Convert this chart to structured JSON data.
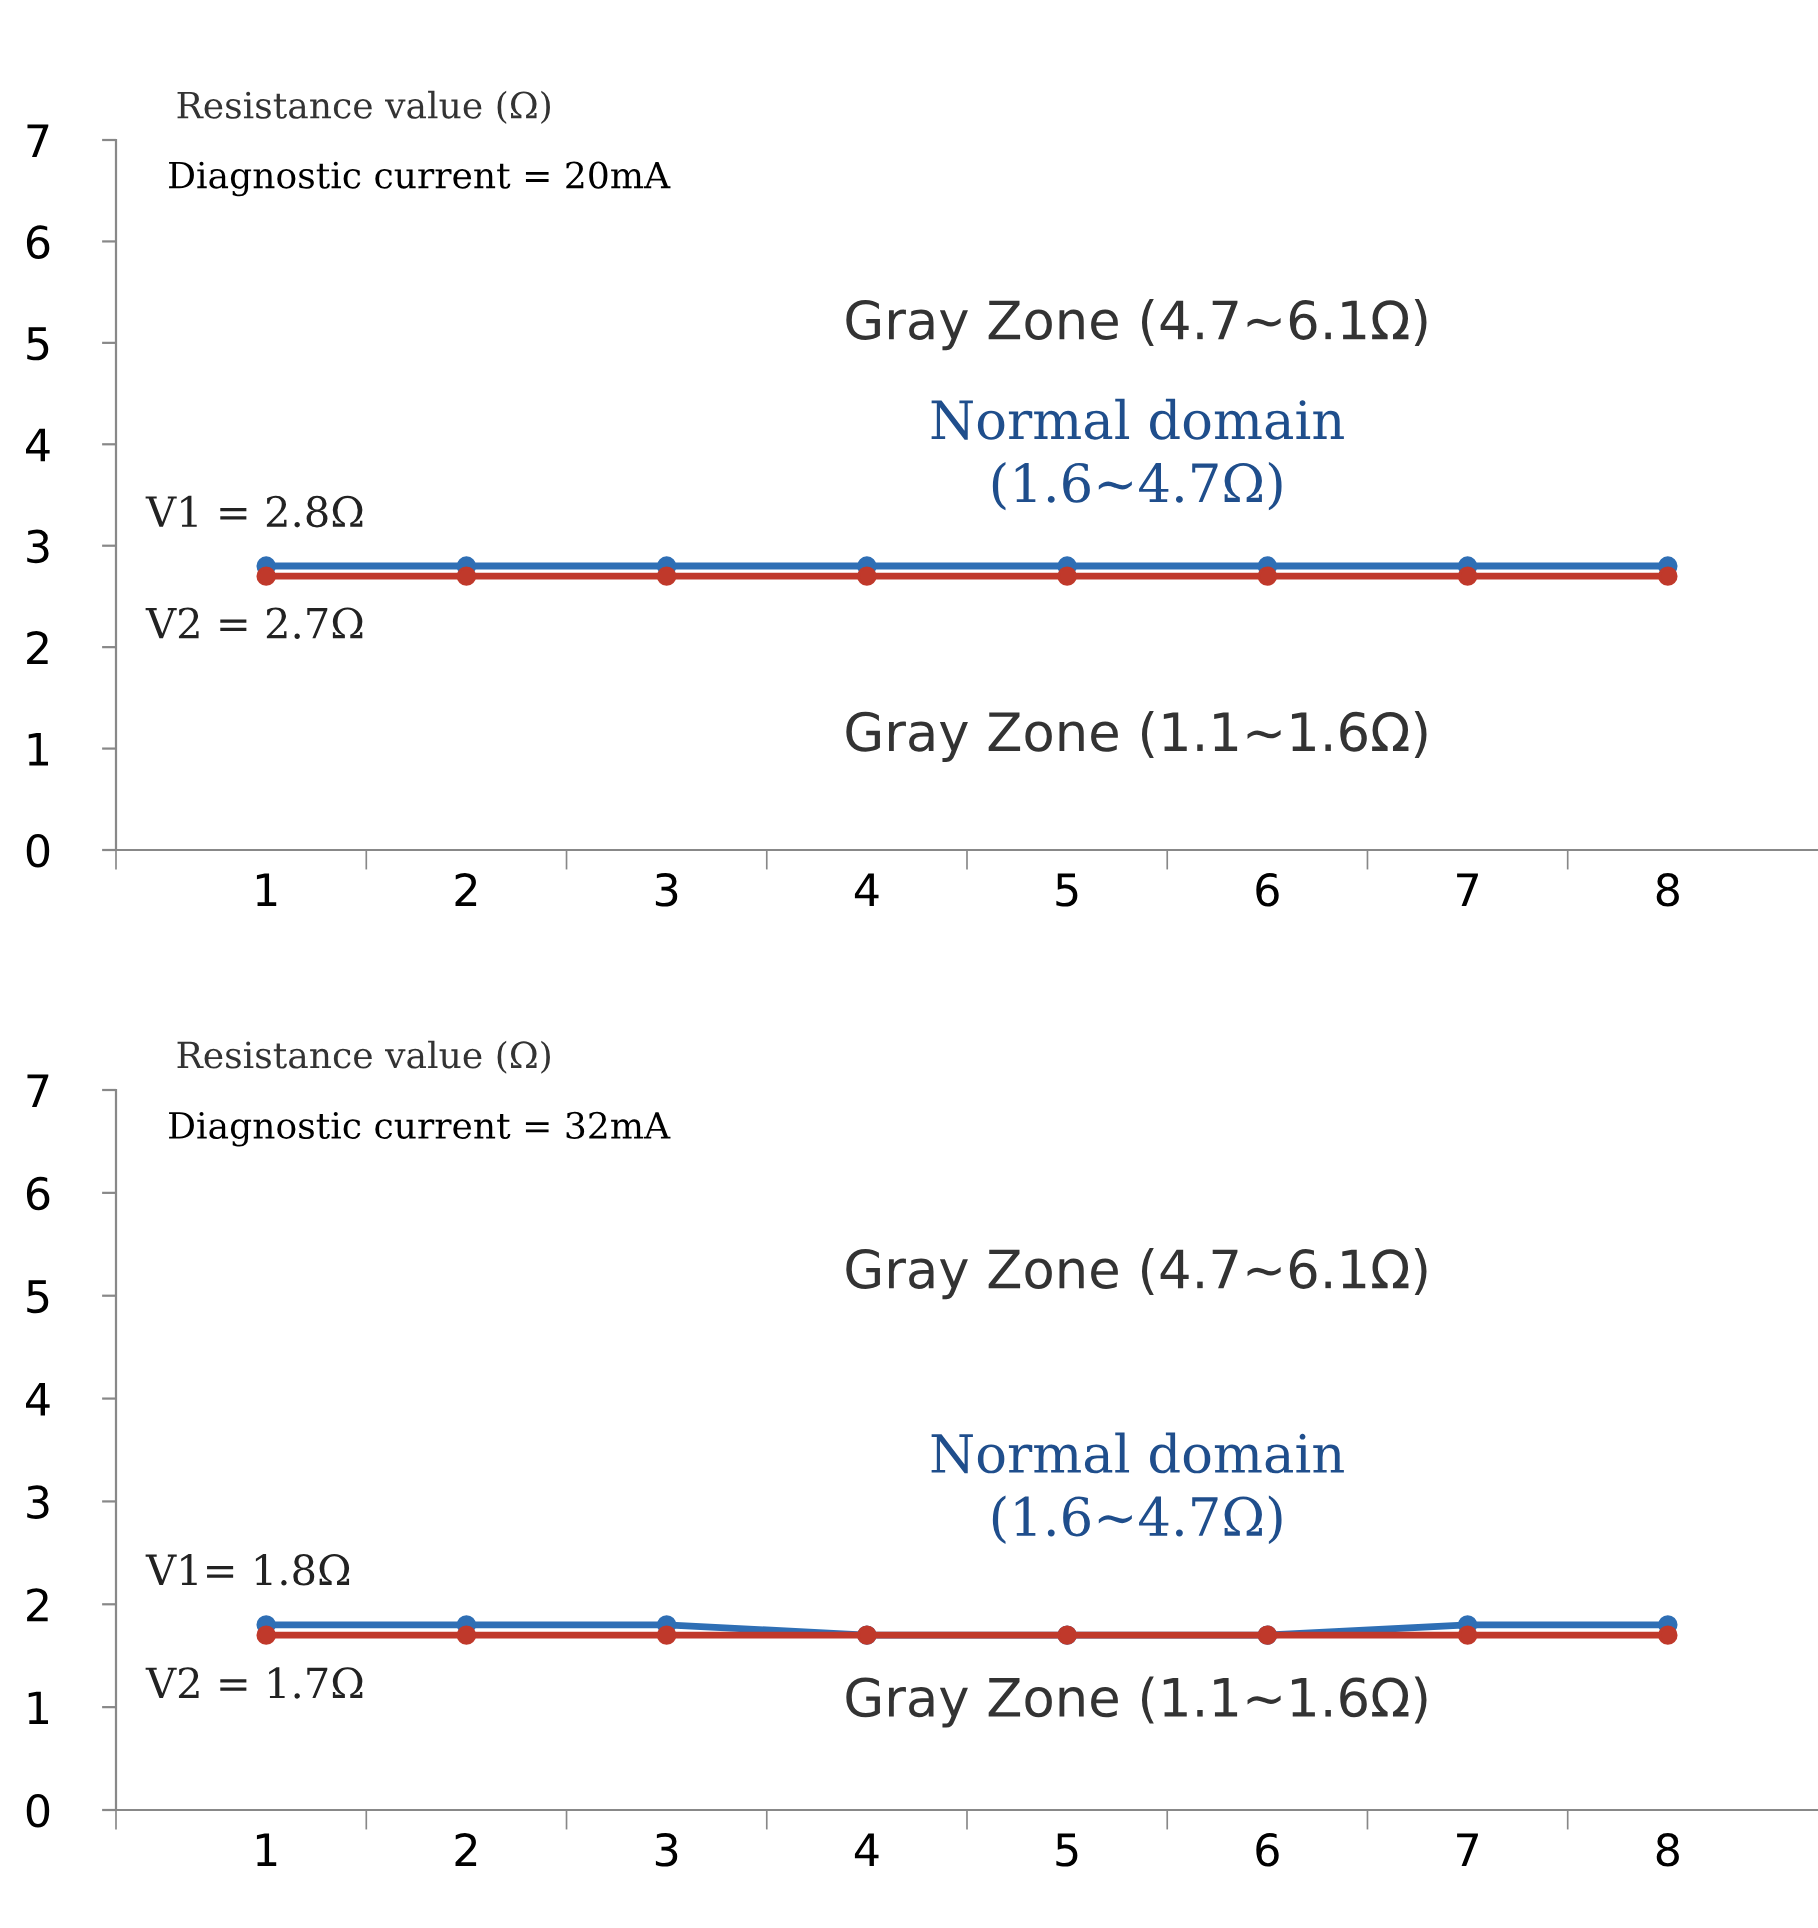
{
  "chart_data": [
    {
      "type": "line",
      "ylabel": "Resistance value (Ω)",
      "categories": [
        "1",
        "2",
        "3",
        "4",
        "5",
        "6",
        "7",
        "8"
      ],
      "series": [
        {
          "name": "V1 = 2.8Ω",
          "color": "#2f6fb5",
          "values": [
            2.8,
            2.8,
            2.8,
            2.8,
            2.8,
            2.8,
            2.8,
            2.8
          ]
        },
        {
          "name": "V2 = 2.7Ω",
          "color": "#c0392b",
          "values": [
            2.7,
            2.7,
            2.7,
            2.7,
            2.7,
            2.7,
            2.7,
            2.7
          ]
        }
      ],
      "annotations": [
        "Diagnostic current = 20mA",
        "Gray Zone (4.7~6.1Ω)",
        "Normal domain\n(1.6~4.7Ω)",
        "Gray Zone (1.1~1.6Ω)"
      ],
      "ylim": [
        0,
        7
      ],
      "yticks": [
        0,
        1,
        2,
        3,
        4,
        5,
        6,
        7
      ],
      "marker": "circle",
      "line_style": "solid",
      "grid": false,
      "legend": false
    },
    {
      "type": "line",
      "ylabel": "Resistance value (Ω)",
      "categories": [
        "1",
        "2",
        "3",
        "4",
        "5",
        "6",
        "7",
        "8"
      ],
      "series": [
        {
          "name": "V1= 1.8Ω",
          "color": "#2f6fb5",
          "values": [
            1.8,
            1.8,
            1.8,
            1.7,
            1.7,
            1.7,
            1.8,
            1.8
          ]
        },
        {
          "name": "V2 = 1.7Ω",
          "color": "#c0392b",
          "values": [
            1.7,
            1.7,
            1.7,
            1.7,
            1.7,
            1.7,
            1.7,
            1.7
          ]
        }
      ],
      "annotations": [
        "Diagnostic current = 32mA",
        "Gray Zone (4.7~6.1Ω)",
        "Normal domain\n(1.6~4.7Ω)",
        "Gray Zone (1.1~1.6Ω)"
      ],
      "ylim": [
        0,
        7
      ],
      "yticks": [
        0,
        1,
        2,
        3,
        4,
        5,
        6,
        7
      ],
      "marker": "circle",
      "line_style": "solid",
      "grid": false,
      "legend": false
    }
  ]
}
